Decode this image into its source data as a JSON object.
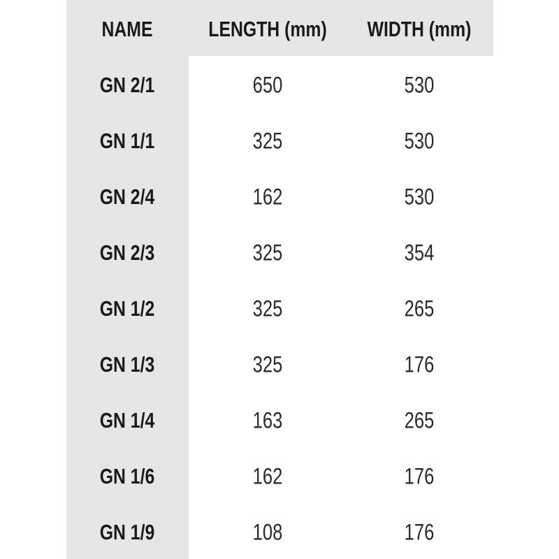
{
  "table": {
    "header": [
      "NAME",
      "LENGTH (mm)",
      "WIDTH (mm)"
    ],
    "rows": [
      [
        "GN 2/1",
        650,
        530
      ],
      [
        "GN 1/1",
        325,
        530
      ],
      [
        "GN 2/4",
        162,
        530
      ],
      [
        "GN 2/3",
        325,
        354
      ],
      [
        "GN 1/2",
        325,
        265
      ],
      [
        "GN 1/3",
        325,
        176
      ],
      [
        "GN 1/4",
        163,
        265
      ],
      [
        "GN 1/6",
        162,
        176
      ],
      [
        "GN 1/9",
        108,
        176
      ]
    ]
  }
}
